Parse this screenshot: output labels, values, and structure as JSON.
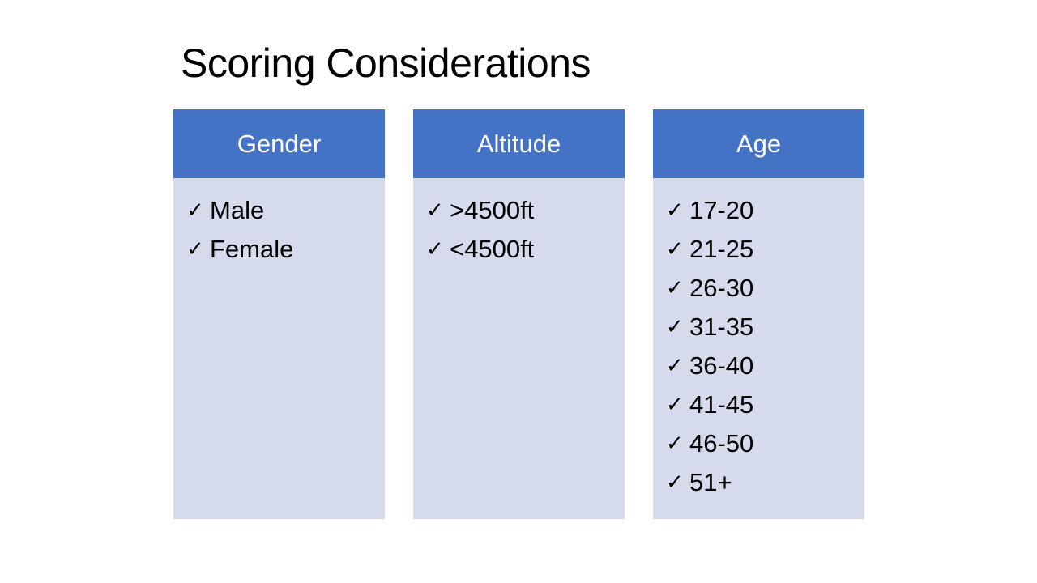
{
  "slide": {
    "title": "Scoring Considerations"
  },
  "columns": [
    {
      "header": "Gender",
      "items": [
        "Male",
        "Female"
      ]
    },
    {
      "header": "Altitude",
      "items": [
        ">4500ft",
        "<4500ft"
      ]
    },
    {
      "header": "Age",
      "items": [
        "17-20",
        "21-25",
        "26-30",
        "31-35",
        "36-40",
        "41-45",
        "46-50",
        "51+"
      ]
    }
  ],
  "style": {
    "header_color": "#4472c4",
    "body_color": "#d5dbec",
    "bullet_icon": "check-icon"
  }
}
